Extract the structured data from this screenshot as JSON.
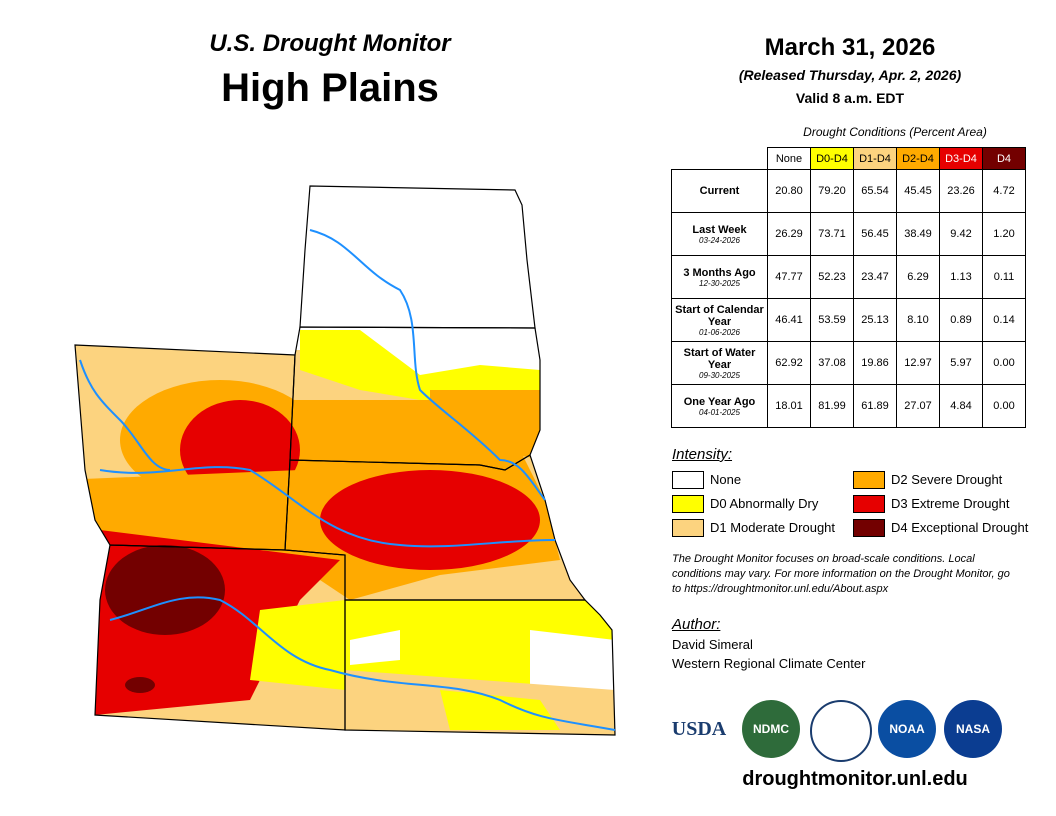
{
  "header": {
    "subtitle": "U.S. Drought Monitor",
    "title": "High Plains",
    "date": "March 31, 2026",
    "released": "(Released Thursday, Apr. 2, 2026)",
    "valid": "Valid 8 a.m. EDT"
  },
  "table": {
    "caption": "Drought Conditions (Percent Area)",
    "columns": [
      "None",
      "D0-D4",
      "D1-D4",
      "D2-D4",
      "D3-D4",
      "D4"
    ],
    "rows": [
      {
        "label": "Current",
        "values": [
          "20.80",
          "79.20",
          "65.54",
          "45.45",
          "23.26",
          "4.72"
        ]
      },
      {
        "label": "Last Week",
        "date": "03-24-2026",
        "values": [
          "26.29",
          "73.71",
          "56.45",
          "38.49",
          "9.42",
          "1.20"
        ]
      },
      {
        "label": "3 Months Ago",
        "date": "12-30-2025",
        "values": [
          "47.77",
          "52.23",
          "23.47",
          "6.29",
          "1.13",
          "0.11"
        ]
      },
      {
        "label": "Start of Calendar Year",
        "date": "01-06-2026",
        "values": [
          "46.41",
          "53.59",
          "25.13",
          "8.10",
          "0.89",
          "0.14"
        ]
      },
      {
        "label": "Start of Water Year",
        "date": "09-30-2025",
        "values": [
          "62.92",
          "37.08",
          "19.86",
          "12.97",
          "5.97",
          "0.00"
        ]
      },
      {
        "label": "One Year Ago",
        "date": "04-01-2025",
        "values": [
          "18.01",
          "81.99",
          "61.89",
          "27.07",
          "4.84",
          "0.00"
        ]
      }
    ]
  },
  "legend": {
    "title": "Intensity:",
    "items": [
      "None",
      "D2 Severe Drought",
      "D0 Abnormally Dry",
      "D3 Extreme Drought",
      "D1 Moderate Drought",
      "D4 Exceptional Drought"
    ]
  },
  "note": "The Drought Monitor focuses on broad-scale conditions. Local conditions may vary. For more information on the Drought Monitor, go to https://droughtmonitor.unl.edu/About.aspx",
  "author": {
    "label": "Author:",
    "name": "David Simeral",
    "org": "Western Regional Climate Center"
  },
  "logos": [
    "USDA",
    "NDMC",
    "NOAA",
    "NASA"
  ],
  "url": "droughtmonitor.unl.edu"
}
